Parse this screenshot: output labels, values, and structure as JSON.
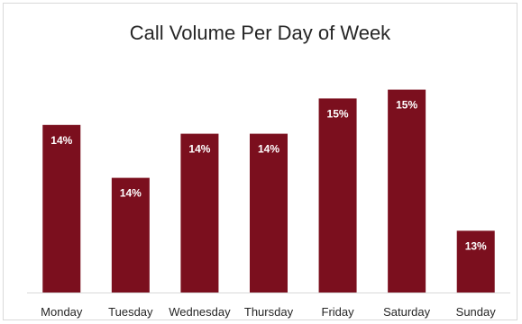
{
  "chart_data": {
    "type": "bar",
    "title": "Call Volume Per Day of Week",
    "categories": [
      "Monday",
      "Tuesday",
      "Wednesday",
      "Thursday",
      "Friday",
      "Saturday",
      "Sunday"
    ],
    "values": [
      14.4,
      13.8,
      14.3,
      14.3,
      14.7,
      14.8,
      13.2
    ],
    "data_labels": [
      "14%",
      "14%",
      "14%",
      "14%",
      "15%",
      "15%",
      "13%"
    ],
    "ylim": [
      12.5,
      15.0
    ],
    "grid": false,
    "colors": {
      "bar": "#7b0f1e",
      "axis": "#d9d9d9"
    }
  }
}
